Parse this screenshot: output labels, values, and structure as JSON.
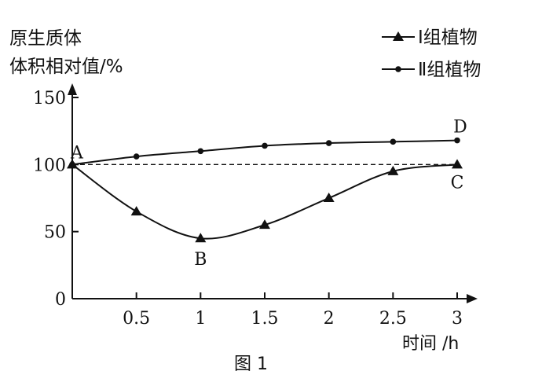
{
  "chart_data": {
    "type": "line",
    "ylabel_lines": [
      "原生质体",
      "体积相对值/%"
    ],
    "xlabel": "时间 /h",
    "caption": "图 1",
    "xlim": [
      0,
      3
    ],
    "ylim": [
      0,
      150
    ],
    "x_ticks": [
      "0.5",
      "1",
      "1.5",
      "2",
      "2.5",
      "3"
    ],
    "y_ticks": [
      "0",
      "50",
      "100",
      "150"
    ],
    "reference_line": {
      "y": 100,
      "style": "dashed"
    },
    "legend_position": "top-right",
    "series": [
      {
        "name": "Ⅰ组植物",
        "marker": "triangle",
        "x": [
          0,
          0.5,
          1,
          1.5,
          2,
          2.5,
          3
        ],
        "values": [
          100,
          65,
          45,
          55,
          75,
          95,
          100
        ]
      },
      {
        "name": "Ⅱ组植物",
        "marker": "circle",
        "x": [
          0,
          0.5,
          1,
          1.5,
          2,
          2.5,
          3
        ],
        "values": [
          100,
          106,
          110,
          114,
          116,
          117,
          118
        ]
      }
    ],
    "point_labels": [
      {
        "text": "A",
        "x": 0,
        "y": 100
      },
      {
        "text": "B",
        "x": 1,
        "y": 45
      },
      {
        "text": "C",
        "x": 3,
        "y": 100
      },
      {
        "text": "D",
        "x": 3,
        "y": 118
      }
    ]
  }
}
